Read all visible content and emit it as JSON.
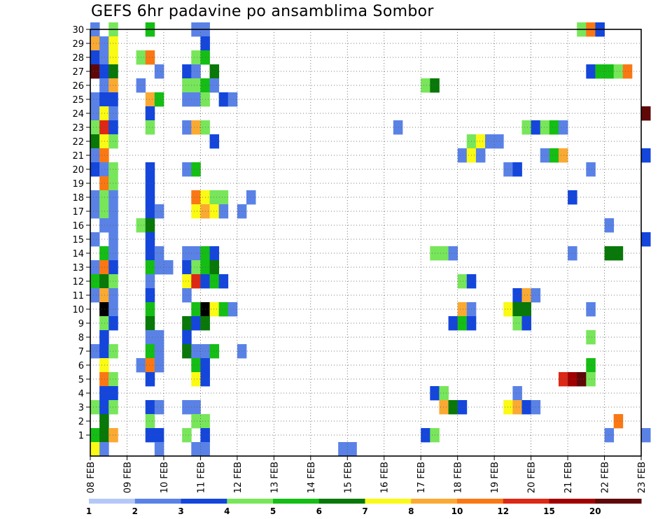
{
  "chart_data": {
    "type": "heatmap",
    "title": "GEFS 6hr padavine po ansamblima Sombor",
    "xlabel": "",
    "ylabel": "",
    "xlim": [
      0,
      60
    ],
    "ylim": [
      0,
      30
    ],
    "grid": true,
    "x_ticks": [
      {
        "day": 0,
        "label": "08 FEB"
      },
      {
        "day": 4,
        "label": "09 FEB"
      },
      {
        "day": 8,
        "label": "10 FEB"
      },
      {
        "day": 12,
        "label": "11 FEB"
      },
      {
        "day": 16,
        "label": "12 FEB"
      },
      {
        "day": 20,
        "label": "13 FEB"
      },
      {
        "day": 24,
        "label": "14 FEB"
      },
      {
        "day": 28,
        "label": "15 FEB"
      },
      {
        "day": 32,
        "label": "16 FEB"
      },
      {
        "day": 36,
        "label": "17 FEB"
      },
      {
        "day": 40,
        "label": "18 FEB"
      },
      {
        "day": 44,
        "label": "19 FEB"
      },
      {
        "day": 48,
        "label": "20 FEB"
      },
      {
        "day": 52,
        "label": "21 FEB"
      },
      {
        "day": 56,
        "label": "22 FEB"
      },
      {
        "day": 60,
        "label": "23 FEB"
      }
    ],
    "y_ticks": [
      1,
      2,
      3,
      4,
      5,
      6,
      7,
      8,
      9,
      10,
      11,
      12,
      13,
      14,
      15,
      16,
      17,
      18,
      19,
      20,
      21,
      22,
      23,
      24,
      25,
      26,
      27,
      28,
      29,
      30
    ],
    "colorbar": {
      "labels": [
        "1",
        "2",
        "3",
        "4",
        "5",
        "6",
        "7",
        "8",
        "10",
        "12",
        "15",
        "20"
      ],
      "colors": [
        "#b4c8f8",
        "#5a82e6",
        "#1446dc",
        "#78e65a",
        "#14be14",
        "#087808",
        "#fafa14",
        "#faaa32",
        "#fa7814",
        "#dc2814",
        "#a00000",
        "#600808"
      ]
    },
    "cells": [
      [
        0,
        30,
        1
      ],
      [
        2,
        30,
        3
      ],
      [
        6,
        30,
        4
      ],
      [
        11,
        30,
        1
      ],
      [
        12,
        30,
        1
      ],
      [
        53,
        30,
        3
      ],
      [
        54,
        30,
        8
      ],
      [
        55,
        30,
        2
      ],
      [
        0,
        29,
        7
      ],
      [
        1,
        29,
        1
      ],
      [
        2,
        29,
        6
      ],
      [
        12,
        29,
        2
      ],
      [
        0,
        28,
        2
      ],
      [
        1,
        28,
        1
      ],
      [
        2,
        28,
        6
      ],
      [
        5,
        28,
        3
      ],
      [
        6,
        28,
        8
      ],
      [
        11,
        28,
        3
      ],
      [
        12,
        28,
        4
      ],
      [
        0,
        27,
        11
      ],
      [
        1,
        27,
        2
      ],
      [
        2,
        27,
        5
      ],
      [
        7,
        27,
        1
      ],
      [
        10,
        27,
        2
      ],
      [
        11,
        27,
        1
      ],
      [
        13,
        27,
        5
      ],
      [
        54,
        27,
        2
      ],
      [
        55,
        27,
        4
      ],
      [
        56,
        27,
        4
      ],
      [
        57,
        27,
        3
      ],
      [
        58,
        27,
        8
      ],
      [
        1,
        26,
        1
      ],
      [
        2,
        26,
        7
      ],
      [
        5,
        26,
        1
      ],
      [
        10,
        26,
        3
      ],
      [
        11,
        26,
        3
      ],
      [
        12,
        26,
        4
      ],
      [
        13,
        26,
        1
      ],
      [
        36,
        26,
        3
      ],
      [
        37,
        26,
        5
      ],
      [
        0,
        25,
        1
      ],
      [
        1,
        25,
        2
      ],
      [
        2,
        25,
        2
      ],
      [
        6,
        25,
        7
      ],
      [
        7,
        25,
        4
      ],
      [
        10,
        25,
        1
      ],
      [
        11,
        25,
        1
      ],
      [
        12,
        25,
        3
      ],
      [
        14,
        25,
        2
      ],
      [
        15,
        25,
        1
      ],
      [
        0,
        24,
        1
      ],
      [
        1,
        24,
        6
      ],
      [
        2,
        24,
        1
      ],
      [
        6,
        24,
        2
      ],
      [
        60,
        24,
        11
      ],
      [
        0,
        23,
        3
      ],
      [
        1,
        23,
        9
      ],
      [
        2,
        23,
        2
      ],
      [
        6,
        23,
        3
      ],
      [
        10,
        23,
        1
      ],
      [
        11,
        23,
        7
      ],
      [
        12,
        23,
        3
      ],
      [
        33,
        23,
        1
      ],
      [
        47,
        23,
        3
      ],
      [
        48,
        23,
        2
      ],
      [
        49,
        23,
        3
      ],
      [
        50,
        23,
        4
      ],
      [
        51,
        23,
        1
      ],
      [
        0,
        22,
        5
      ],
      [
        1,
        22,
        6
      ],
      [
        2,
        22,
        3
      ],
      [
        13,
        22,
        2
      ],
      [
        41,
        22,
        3
      ],
      [
        42,
        22,
        6
      ],
      [
        43,
        22,
        1
      ],
      [
        44,
        22,
        1
      ],
      [
        0,
        21,
        1
      ],
      [
        1,
        21,
        8
      ],
      [
        40,
        21,
        1
      ],
      [
        41,
        21,
        6
      ],
      [
        42,
        21,
        1
      ],
      [
        49,
        21,
        1
      ],
      [
        50,
        21,
        4
      ],
      [
        51,
        21,
        7
      ],
      [
        60,
        21,
        2
      ],
      [
        0,
        20,
        2
      ],
      [
        1,
        20,
        1
      ],
      [
        2,
        20,
        3
      ],
      [
        6,
        20,
        2
      ],
      [
        10,
        20,
        1
      ],
      [
        11,
        20,
        4
      ],
      [
        45,
        20,
        1
      ],
      [
        46,
        20,
        2
      ],
      [
        54,
        20,
        1
      ],
      [
        1,
        19,
        8
      ],
      [
        2,
        19,
        3
      ],
      [
        6,
        19,
        2
      ],
      [
        0,
        18,
        1
      ],
      [
        1,
        18,
        3
      ],
      [
        2,
        18,
        1
      ],
      [
        6,
        18,
        2
      ],
      [
        11,
        18,
        8
      ],
      [
        12,
        18,
        6
      ],
      [
        13,
        18,
        3
      ],
      [
        14,
        18,
        3
      ],
      [
        17,
        18,
        1
      ],
      [
        52,
        18,
        2
      ],
      [
        0,
        17,
        1
      ],
      [
        1,
        17,
        3
      ],
      [
        2,
        17,
        1
      ],
      [
        6,
        17,
        2
      ],
      [
        7,
        17,
        1
      ],
      [
        11,
        17,
        6
      ],
      [
        12,
        17,
        7
      ],
      [
        13,
        17,
        6
      ],
      [
        14,
        17,
        1
      ],
      [
        16,
        17,
        1
      ],
      [
        1,
        16,
        1
      ],
      [
        2,
        16,
        1
      ],
      [
        5,
        16,
        3
      ],
      [
        6,
        16,
        5
      ],
      [
        56,
        16,
        1
      ],
      [
        0,
        15,
        1
      ],
      [
        2,
        15,
        1
      ],
      [
        6,
        15,
        2
      ],
      [
        60,
        15,
        2
      ],
      [
        1,
        14,
        4
      ],
      [
        2,
        14,
        1
      ],
      [
        6,
        14,
        2
      ],
      [
        7,
        14,
        1
      ],
      [
        10,
        14,
        1
      ],
      [
        11,
        14,
        1
      ],
      [
        12,
        14,
        4
      ],
      [
        13,
        14,
        2
      ],
      [
        37,
        14,
        3
      ],
      [
        38,
        14,
        3
      ],
      [
        39,
        14,
        1
      ],
      [
        52,
        14,
        1
      ],
      [
        56,
        14,
        5
      ],
      [
        57,
        14,
        5
      ],
      [
        0,
        13,
        1
      ],
      [
        1,
        13,
        8
      ],
      [
        2,
        13,
        2
      ],
      [
        6,
        13,
        4
      ],
      [
        7,
        13,
        1
      ],
      [
        8,
        13,
        1
      ],
      [
        10,
        13,
        2
      ],
      [
        11,
        13,
        3
      ],
      [
        12,
        13,
        4
      ],
      [
        13,
        13,
        5
      ],
      [
        0,
        12,
        4
      ],
      [
        1,
        12,
        5
      ],
      [
        2,
        12,
        3
      ],
      [
        6,
        12,
        1
      ],
      [
        10,
        12,
        6
      ],
      [
        11,
        12,
        9
      ],
      [
        12,
        12,
        2
      ],
      [
        13,
        12,
        4
      ],
      [
        14,
        12,
        2
      ],
      [
        40,
        12,
        3
      ],
      [
        41,
        12,
        2
      ],
      [
        0,
        11,
        1
      ],
      [
        1,
        11,
        7
      ],
      [
        2,
        11,
        1
      ],
      [
        6,
        11,
        2
      ],
      [
        10,
        11,
        1
      ],
      [
        46,
        11,
        2
      ],
      [
        47,
        11,
        7
      ],
      [
        48,
        11,
        1
      ],
      [
        1,
        10,
        12
      ],
      [
        2,
        10,
        1
      ],
      [
        6,
        10,
        4
      ],
      [
        11,
        10,
        4
      ],
      [
        12,
        10,
        12
      ],
      [
        13,
        10,
        6
      ],
      [
        14,
        10,
        4
      ],
      [
        15,
        10,
        1
      ],
      [
        40,
        10,
        7
      ],
      [
        41,
        10,
        1
      ],
      [
        45,
        10,
        6
      ],
      [
        46,
        10,
        5
      ],
      [
        47,
        10,
        5
      ],
      [
        54,
        10,
        1
      ],
      [
        1,
        9,
        3
      ],
      [
        2,
        9,
        2
      ],
      [
        6,
        9,
        5
      ],
      [
        10,
        9,
        5
      ],
      [
        11,
        9,
        2
      ],
      [
        12,
        9,
        5
      ],
      [
        39,
        9,
        2
      ],
      [
        40,
        9,
        4
      ],
      [
        41,
        9,
        2
      ],
      [
        46,
        9,
        3
      ],
      [
        47,
        9,
        2
      ],
      [
        1,
        8,
        2
      ],
      [
        6,
        8,
        1
      ],
      [
        7,
        8,
        1
      ],
      [
        10,
        8,
        2
      ],
      [
        54,
        8,
        3
      ],
      [
        0,
        7,
        1
      ],
      [
        1,
        7,
        2
      ],
      [
        2,
        7,
        3
      ],
      [
        6,
        7,
        4
      ],
      [
        7,
        7,
        1
      ],
      [
        10,
        7,
        5
      ],
      [
        11,
        7,
        1
      ],
      [
        12,
        7,
        1
      ],
      [
        13,
        7,
        4
      ],
      [
        16,
        7,
        1
      ],
      [
        1,
        6,
        6
      ],
      [
        5,
        6,
        1
      ],
      [
        6,
        6,
        8
      ],
      [
        7,
        6,
        1
      ],
      [
        11,
        6,
        4
      ],
      [
        12,
        6,
        2
      ],
      [
        54,
        6,
        4
      ],
      [
        1,
        5,
        8
      ],
      [
        2,
        5,
        3
      ],
      [
        6,
        5,
        2
      ],
      [
        11,
        5,
        6
      ],
      [
        12,
        5,
        2
      ],
      [
        51,
        5,
        9
      ],
      [
        52,
        5,
        10
      ],
      [
        53,
        5,
        11
      ],
      [
        54,
        5,
        3
      ],
      [
        1,
        4,
        2
      ],
      [
        2,
        4,
        2
      ],
      [
        37,
        4,
        2
      ],
      [
        38,
        4,
        3
      ],
      [
        46,
        4,
        1
      ],
      [
        0,
        3,
        3
      ],
      [
        1,
        3,
        2
      ],
      [
        2,
        3,
        3
      ],
      [
        6,
        3,
        2
      ],
      [
        7,
        3,
        1
      ],
      [
        10,
        3,
        1
      ],
      [
        11,
        3,
        1
      ],
      [
        38,
        3,
        7
      ],
      [
        39,
        3,
        5
      ],
      [
        40,
        3,
        2
      ],
      [
        45,
        3,
        6
      ],
      [
        46,
        3,
        7
      ],
      [
        47,
        3,
        2
      ],
      [
        48,
        3,
        1
      ],
      [
        1,
        2,
        5
      ],
      [
        6,
        2,
        3
      ],
      [
        11,
        2,
        3
      ],
      [
        12,
        2,
        3
      ],
      [
        57,
        2,
        8
      ],
      [
        0,
        1,
        4
      ],
      [
        1,
        1,
        5
      ],
      [
        2,
        1,
        7
      ],
      [
        6,
        1,
        2
      ],
      [
        7,
        1,
        2
      ],
      [
        10,
        1,
        3
      ],
      [
        12,
        1,
        2
      ],
      [
        36,
        1,
        2
      ],
      [
        37,
        1,
        3
      ],
      [
        56,
        1,
        1
      ],
      [
        60,
        1,
        1
      ],
      [
        0,
        0,
        6
      ],
      [
        1,
        0,
        1
      ],
      [
        7,
        0,
        1
      ],
      [
        11,
        0,
        1
      ],
      [
        12,
        0,
        1
      ],
      [
        27,
        0,
        1
      ],
      [
        28,
        0,
        1
      ]
    ]
  }
}
